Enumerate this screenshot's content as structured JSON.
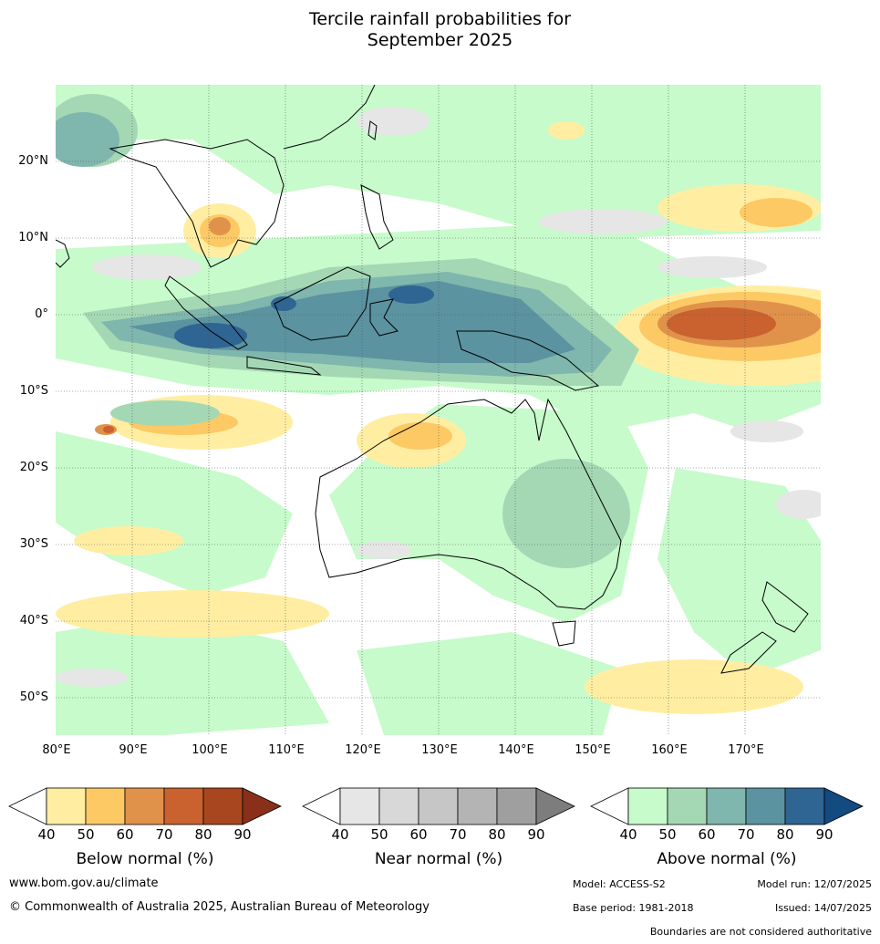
{
  "title_line1": "Tercile rainfall probabilities for",
  "title_line2": "September 2025",
  "lat_labels": [
    "20°N",
    "10°N",
    "0°",
    "10°S",
    "20°S",
    "30°S",
    "40°S",
    "50°S"
  ],
  "lon_labels": [
    "80°E",
    "90°E",
    "100°E",
    "110°E",
    "120°E",
    "130°E",
    "140°E",
    "150°E",
    "160°E",
    "170°E"
  ],
  "legends": [
    {
      "title": "Below normal (%)",
      "ticks": [
        "40",
        "50",
        "60",
        "70",
        "80",
        "90"
      ],
      "colors": [
        "#ffeea2",
        "#fdc964",
        "#e0924a",
        "#c9622f",
        "#a8471f",
        "#8a301a"
      ]
    },
    {
      "title": "Near normal (%)",
      "ticks": [
        "40",
        "50",
        "60",
        "70",
        "80",
        "90"
      ],
      "colors": [
        "#e6e6e6",
        "#d8d8d8",
        "#c6c6c6",
        "#b4b4b4",
        "#9f9f9f",
        "#7d7d7d"
      ]
    },
    {
      "title": "Above normal (%)",
      "ticks": [
        "40",
        "50",
        "60",
        "70",
        "80",
        "90"
      ],
      "colors": [
        "#c7fbcb",
        "#a4d8b4",
        "#7fb6ad",
        "#5b93a0",
        "#2e6592",
        "#134a80"
      ]
    }
  ],
  "footer": {
    "website": "www.bom.gov.au/climate",
    "copyright": "© Commonwealth of Australia 2025, Australian Bureau of Meteorology",
    "model": "Model: ACCESS-S2",
    "model_run": "Model run: 12/07/2025",
    "base_period": "Base period: 1981-2018",
    "issued": "Issued: 14/07/2025",
    "disclaimer": "Boundaries are not considered authoritative"
  }
}
